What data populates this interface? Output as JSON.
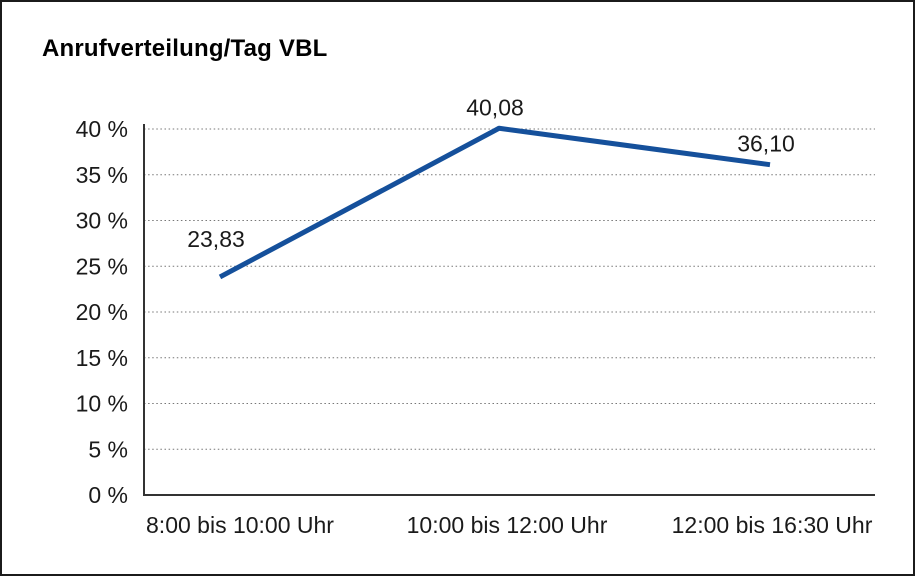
{
  "page": {
    "title": "Anrufverteilung/Tag VBL"
  },
  "chart_data": {
    "type": "line",
    "title": "Anrufverteilung/Tag VBL",
    "categories": [
      "8:00 bis 10:00 Uhr",
      "10:00 bis 12:00 Uhr",
      "12:00 bis 16:30 Uhr"
    ],
    "values": [
      23.83,
      40.08,
      36.1
    ],
    "data_labels": [
      "23,83",
      "40,08",
      "36,10"
    ],
    "ytick_values": [
      0,
      5,
      10,
      15,
      20,
      25,
      30,
      35,
      40
    ],
    "ytick_labels": [
      "0 %",
      "5 %",
      "10 %",
      "15 %",
      "20 %",
      "25 %",
      "30 %",
      "35 %",
      "40 %"
    ],
    "ylim": [
      0,
      40
    ],
    "xlabel": "",
    "ylabel": "",
    "grid": "horizontal-dotted",
    "legend": "none",
    "line_color": "#15509B",
    "label_color": "#1a1a1a",
    "axis_color": "#333333",
    "grid_color": "#777777"
  }
}
